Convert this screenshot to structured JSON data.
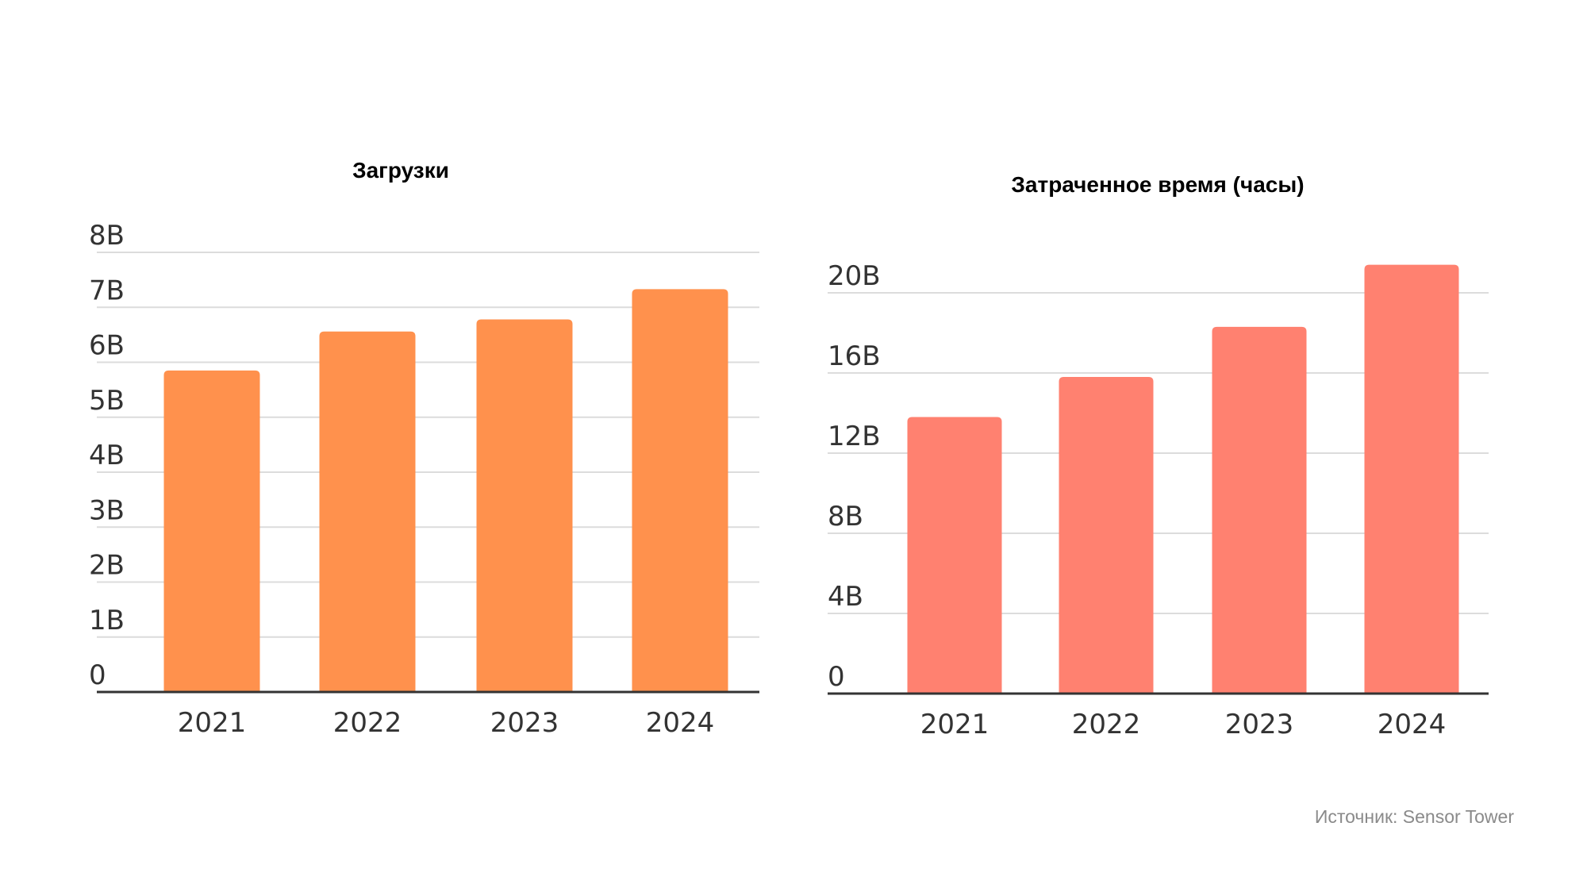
{
  "chart_data": [
    {
      "type": "bar",
      "title": "Загрузки",
      "categories": [
        "2021",
        "2022",
        "2023",
        "2024"
      ],
      "values": [
        5.85,
        6.56,
        6.78,
        7.33
      ],
      "unit": "B",
      "yticks": [
        0,
        1,
        2,
        3,
        4,
        5,
        6,
        7,
        8
      ],
      "ytick_labels": [
        "0",
        "1B",
        "2B",
        "3B",
        "4B",
        "5B",
        "6B",
        "7B",
        "8B"
      ],
      "ylim": [
        0,
        8
      ],
      "grid": true,
      "color": "#FF914D"
    },
    {
      "type": "bar",
      "title": "Затраченное время (часы)",
      "categories": [
        "2021",
        "2022",
        "2023",
        "2024"
      ],
      "values": [
        13.8,
        15.8,
        18.3,
        21.4
      ],
      "unit": "B",
      "yticks": [
        0,
        4,
        8,
        12,
        16,
        20
      ],
      "ytick_labels": [
        "0",
        "4B",
        "8B",
        "12B",
        "16B",
        "20B"
      ],
      "ylim": [
        0,
        20
      ],
      "grid": true,
      "color": "#FF8170"
    }
  ],
  "source": "Источник: Sensor Tower"
}
